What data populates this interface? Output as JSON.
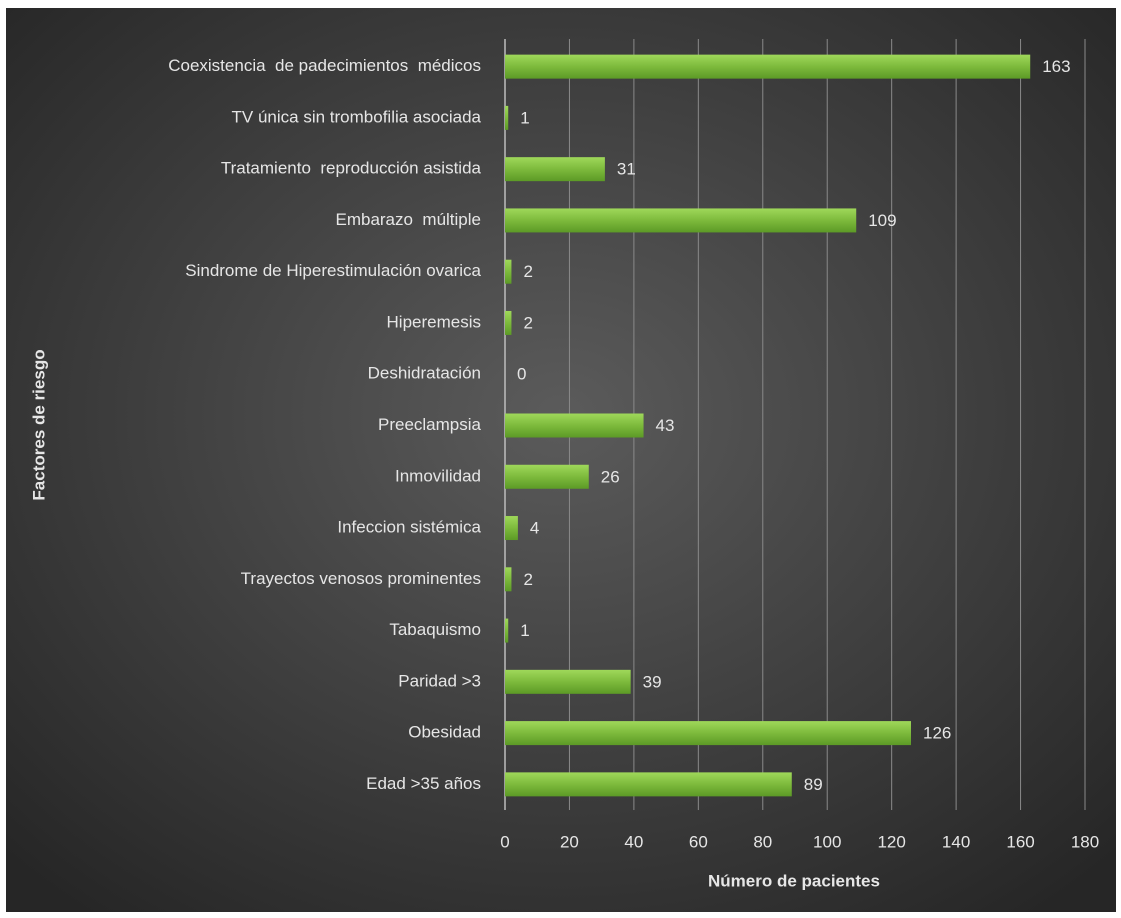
{
  "chart_data": {
    "type": "barh",
    "xlabel": "Número de pacientes",
    "ylabel": "Factores de riesgo",
    "categories": [
      "Coexistencia  de padecimientos  médicos",
      "TV única sin trombofilia asociada",
      "Tratamiento  reproducción asistida",
      "Embarazo  múltiple",
      "Sindrome de Hiperestimulación ovarica",
      "Hiperemesis",
      "Deshidratación",
      "Preeclampsia",
      "Inmovilidad",
      "Infeccion sistémica",
      "Trayectos venosos prominentes",
      "Tabaquismo",
      "Paridad >3",
      "Obesidad",
      "Edad >35 años"
    ],
    "values": [
      163,
      1,
      31,
      109,
      2,
      2,
      0,
      43,
      26,
      4,
      2,
      1,
      39,
      126,
      89
    ],
    "color": "#7dba3c",
    "xlim": [
      0,
      180
    ],
    "xticks": [
      0,
      20,
      40,
      60,
      80,
      100,
      120,
      140,
      160,
      180
    ],
    "grid": true
  }
}
